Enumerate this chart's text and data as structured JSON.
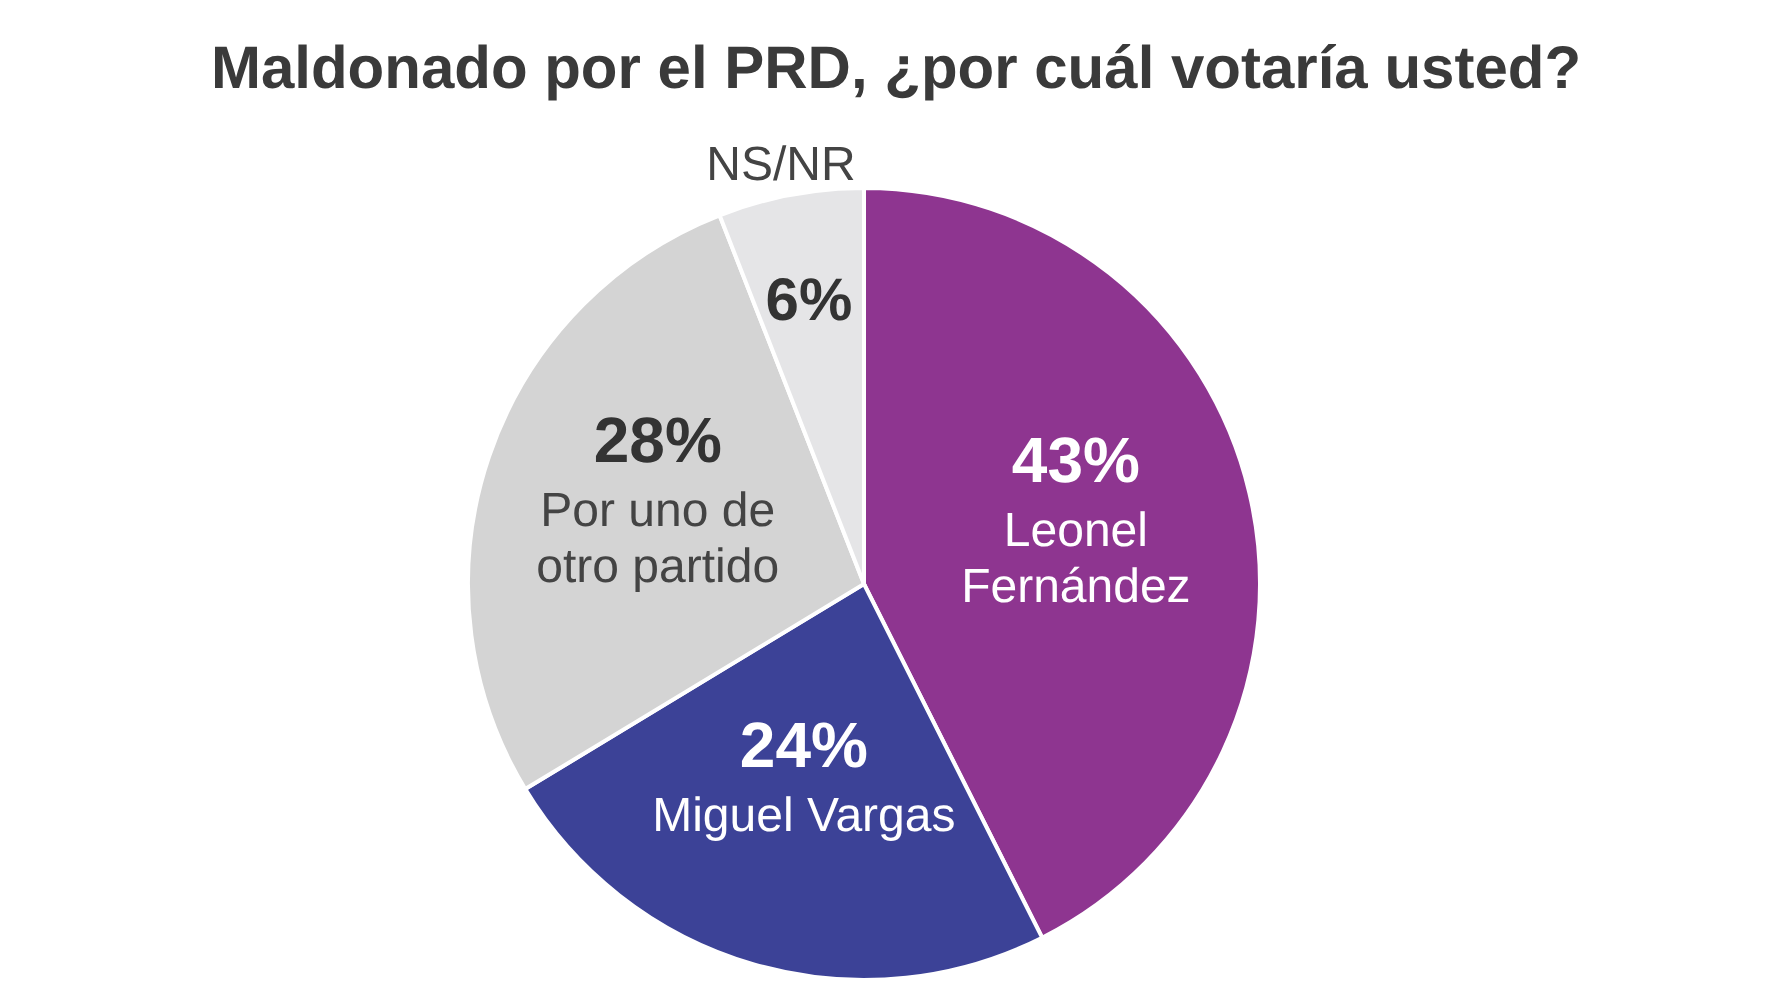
{
  "chart_data": {
    "type": "pie",
    "title": "Maldonado por el PRD, ¿por cuál votaría usted?",
    "categories": [
      "Leonel Fernández",
      "Miguel Vargas",
      "Por uno de otro partido",
      "NS/NR"
    ],
    "values": [
      43,
      24,
      28,
      6
    ],
    "colors": [
      "#8e3590",
      "#3c4297",
      "#d4d4d4",
      "#e5e5e7"
    ],
    "value_labels": [
      "43%",
      "24%",
      "28%",
      "6%"
    ]
  }
}
